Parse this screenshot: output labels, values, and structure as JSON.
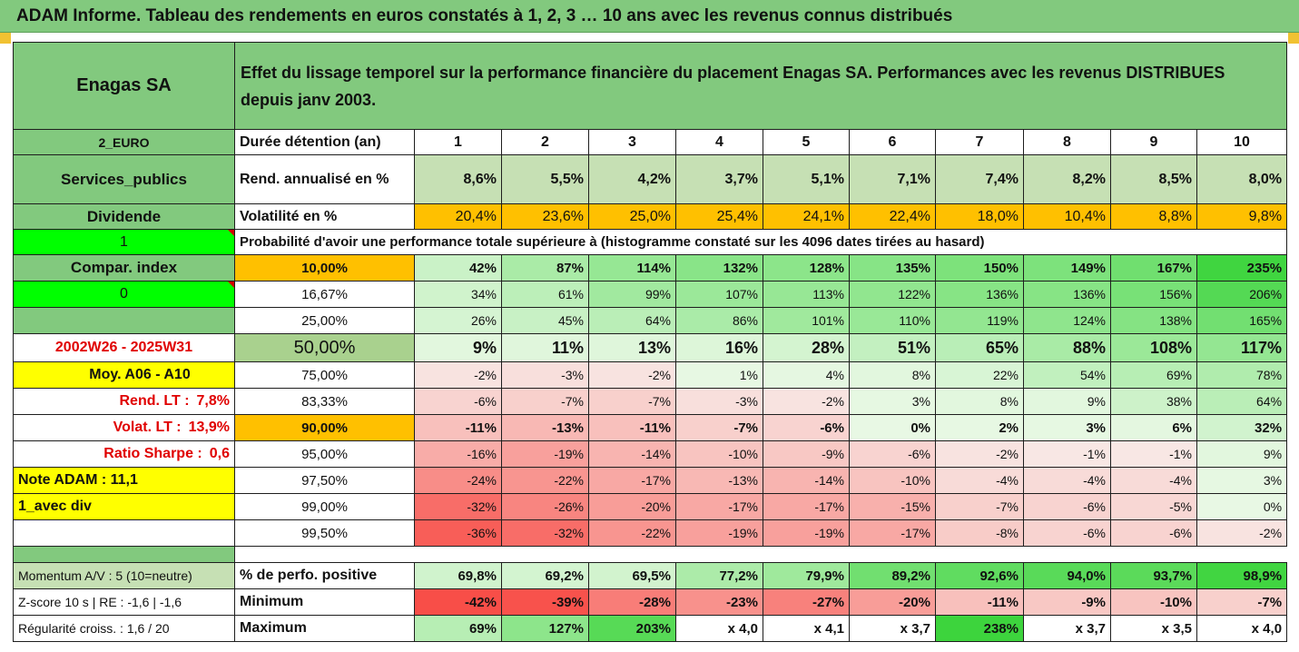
{
  "header": {
    "title": "ADAM Informe. Tableau des rendements en euros constatés à 1, 2, 3 … 10 ans avec les revenus connus distribués"
  },
  "company": {
    "name": "Enagas SA",
    "description": "Effet du lissage temporel sur la performance financière du placement Enagas SA. Performances avec les revenus DISTRIBUES depuis janv 2003."
  },
  "side_info": {
    "currency": "2_EURO",
    "sector": "Services_publics",
    "dividend_label": "Dividende",
    "dividend_value": "1",
    "compar_label": "Compar. index",
    "compar_value": "0",
    "period": "2002W26 - 2025W31",
    "moy_label": "Moy. A06 - A10",
    "rend_lt_label": "Rend. LT :",
    "rend_lt_value": "7,8%",
    "volat_lt_label": "Volat. LT :",
    "volat_lt_value": "13,9%",
    "sharpe_label": "Ratio Sharpe :",
    "sharpe_value": "0,6",
    "note_adam": "Note ADAM : 11,1",
    "mode": "1_avec div"
  },
  "colors": {
    "header_green": "#82c97e",
    "rend_green": "#c6e0b4",
    "volat_orange": "#ffc000",
    "flag_green": "#00ff00",
    "yellow": "#ffff00",
    "text_red": "#e00000"
  },
  "table": {
    "duration_label": "Durée détention (an)",
    "years": [
      "1",
      "2",
      "3",
      "4",
      "5",
      "6",
      "7",
      "8",
      "9",
      "10"
    ],
    "rend_label": "Rend. annualisé en %",
    "rend": [
      "8,6%",
      "5,5%",
      "4,2%",
      "3,7%",
      "5,1%",
      "7,1%",
      "7,4%",
      "8,2%",
      "8,5%",
      "8,0%"
    ],
    "volat_label": "Volatilité en %",
    "volat": [
      "20,4%",
      "23,6%",
      "25,0%",
      "25,4%",
      "24,1%",
      "22,4%",
      "18,0%",
      "10,4%",
      "8,8%",
      "9,8%"
    ],
    "prob_title": "Probabilité d'avoir une performance totale supérieure à (histogramme constaté sur les 4096 dates tirées au hasard)",
    "prob_rows": [
      {
        "pct": "10,00%",
        "values": [
          "42%",
          "87%",
          "114%",
          "132%",
          "128%",
          "135%",
          "150%",
          "149%",
          "167%",
          "235%"
        ]
      },
      {
        "pct": "16,67%",
        "values": [
          "34%",
          "61%",
          "99%",
          "107%",
          "113%",
          "122%",
          "136%",
          "136%",
          "156%",
          "206%"
        ]
      },
      {
        "pct": "25,00%",
        "values": [
          "26%",
          "45%",
          "64%",
          "86%",
          "101%",
          "110%",
          "119%",
          "124%",
          "138%",
          "165%"
        ]
      },
      {
        "pct": "50,00%",
        "values": [
          "9%",
          "11%",
          "13%",
          "16%",
          "28%",
          "51%",
          "65%",
          "88%",
          "108%",
          "117%"
        ]
      },
      {
        "pct": "75,00%",
        "values": [
          "-2%",
          "-3%",
          "-2%",
          "1%",
          "4%",
          "8%",
          "22%",
          "54%",
          "69%",
          "78%"
        ]
      },
      {
        "pct": "83,33%",
        "values": [
          "-6%",
          "-7%",
          "-7%",
          "-3%",
          "-2%",
          "3%",
          "8%",
          "9%",
          "38%",
          "64%"
        ]
      },
      {
        "pct": "90,00%",
        "values": [
          "-11%",
          "-13%",
          "-11%",
          "-7%",
          "-6%",
          "0%",
          "2%",
          "3%",
          "6%",
          "32%"
        ]
      },
      {
        "pct": "95,00%",
        "values": [
          "-16%",
          "-19%",
          "-14%",
          "-10%",
          "-9%",
          "-6%",
          "-2%",
          "-1%",
          "-1%",
          "9%"
        ]
      },
      {
        "pct": "97,50%",
        "values": [
          "-24%",
          "-22%",
          "-17%",
          "-13%",
          "-14%",
          "-10%",
          "-4%",
          "-4%",
          "-4%",
          "3%"
        ]
      },
      {
        "pct": "99,00%",
        "values": [
          "-32%",
          "-26%",
          "-20%",
          "-17%",
          "-17%",
          "-15%",
          "-7%",
          "-6%",
          "-5%",
          "0%"
        ]
      },
      {
        "pct": "99,50%",
        "values": [
          "-36%",
          "-32%",
          "-22%",
          "-19%",
          "-19%",
          "-17%",
          "-8%",
          "-6%",
          "-6%",
          "-2%"
        ]
      }
    ],
    "stats": [
      {
        "side": "Momentum A/V : 5 (10=neutre)",
        "label": "% de perfo. positive",
        "values": [
          "69,8%",
          "69,2%",
          "69,5%",
          "77,2%",
          "79,9%",
          "89,2%",
          "92,6%",
          "94,0%",
          "93,7%",
          "98,9%"
        ]
      },
      {
        "side": "Z-score 10 s | RE : -1,6 | -1,6",
        "label": "Minimum",
        "values": [
          "-42%",
          "-39%",
          "-28%",
          "-23%",
          "-27%",
          "-20%",
          "-11%",
          "-9%",
          "-10%",
          "-7%"
        ]
      },
      {
        "side": "Régularité croiss. : 1,6 / 20",
        "label": "Maximum",
        "values": [
          "69%",
          "127%",
          "203%",
          "x 4,0",
          "x 4,1",
          "x 3,7",
          "238%",
          "x 3,7",
          "x 3,5",
          "x 4,0"
        ]
      }
    ]
  }
}
